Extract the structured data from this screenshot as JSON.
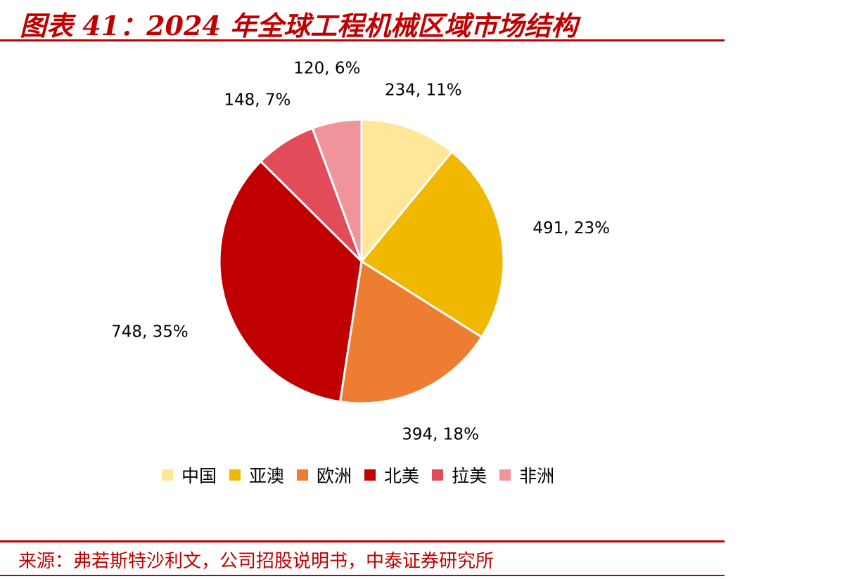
{
  "header": {
    "title": "图表 41：2024 年全球工程机械区域市场结构"
  },
  "footer": {
    "source": "来源：弗若斯特沙利文，公司招股说明书，中泰证券研究所"
  },
  "chart_data": {
    "type": "pie",
    "categories": [
      "中国",
      "亚澳",
      "欧洲",
      "北美",
      "拉美",
      "非洲"
    ],
    "values": [
      234,
      491,
      394,
      748,
      148,
      120
    ],
    "data_labels": [
      "234, 11%",
      "491, 23%",
      "394, 18%",
      "748, 35%",
      "148, 7%",
      "120, 6%"
    ],
    "colors": [
      "#FFE699",
      "#F0B800",
      "#ED7D31",
      "#C00000",
      "#E14B5A",
      "#F0949C"
    ],
    "legend_position": "bottom"
  }
}
